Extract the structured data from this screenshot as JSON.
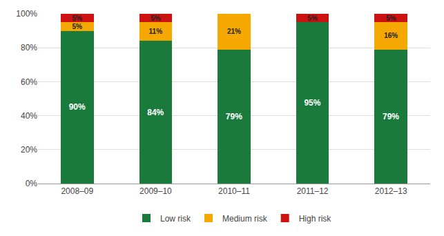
{
  "chart_data": {
    "type": "bar",
    "stacked": true,
    "categories": [
      "2008–09",
      "2009–10",
      "2010–11",
      "2011–12",
      "2012–13"
    ],
    "series": [
      {
        "name": "Low risk",
        "color": "#1a7a3c",
        "values": [
          90,
          84,
          79,
          95,
          79
        ],
        "value_labels": [
          "90%",
          "84%",
          "79%",
          "95%",
          "79%"
        ]
      },
      {
        "name": "Medium risk",
        "color": "#f5a800",
        "values": [
          5,
          11,
          21,
          0,
          16
        ],
        "value_labels": [
          "5%",
          "11%",
          "21%",
          null,
          "16%"
        ]
      },
      {
        "name": "High risk",
        "color": "#cc1111",
        "values": [
          5,
          5,
          0,
          5,
          5
        ],
        "value_labels": [
          "5%",
          "5%",
          null,
          "5%",
          "5%"
        ]
      }
    ],
    "ylim": [
      0,
      100
    ],
    "yticks": [
      {
        "value": 0,
        "label": "0%"
      },
      {
        "value": 20,
        "label": "20%"
      },
      {
        "value": 40,
        "label": "40%"
      },
      {
        "value": 60,
        "label": "60%"
      },
      {
        "value": 80,
        "label": "80%"
      },
      {
        "value": 100,
        "label": "100%"
      }
    ],
    "grid": true,
    "legend": "bottom",
    "data_labels": true
  }
}
